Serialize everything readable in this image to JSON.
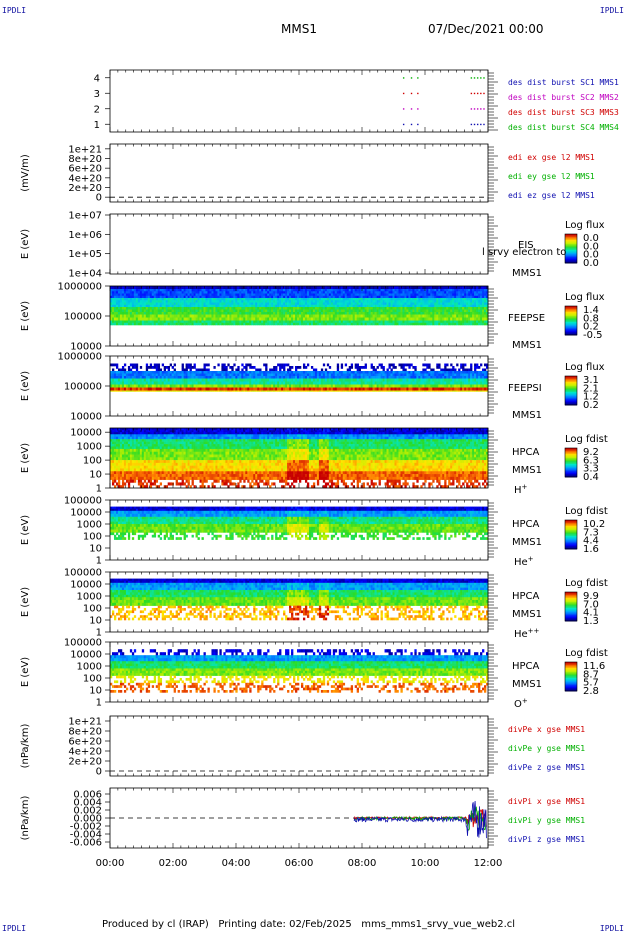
{
  "header": {
    "spacecraft": "MMS1",
    "datetime": "07/Dec/2021 00:00",
    "corner_label": "IPDLI"
  },
  "footer": {
    "produced_by": "Produced by cl (IRAP)",
    "printing_date": "Printing date: 02/Feb/2025",
    "filename": "mms_mms1_srvy_vue_web2.cl"
  },
  "x_axis": {
    "range_hours": [
      0,
      12
    ],
    "ticks": [
      "00:00",
      "02:00",
      "04:00",
      "06:00",
      "08:00",
      "10:00",
      "12:00"
    ]
  },
  "chart_data": [
    {
      "id": "burst",
      "type": "scatter",
      "ylim": [
        0.5,
        4.5
      ],
      "yticks": [
        "4",
        "3",
        "2",
        "1"
      ],
      "ytick_values": [
        4,
        3,
        2,
        1
      ],
      "ylabel": "",
      "series": [
        {
          "name": "des dist burst SC1 MMS1",
          "color": "#1010b0",
          "y": 1,
          "x_hours": [
            9.3,
            9.55,
            9.75,
            11.45,
            11.55,
            11.65,
            11.75,
            11.85
          ]
        },
        {
          "name": "des dist burst SC2 MMS2",
          "color": "#c000c0",
          "y": 2,
          "x_hours": [
            9.3,
            9.55,
            9.75,
            11.45,
            11.55,
            11.65,
            11.75,
            11.85
          ]
        },
        {
          "name": "des dist burst SC3 MMS3",
          "color": "#d00000",
          "y": 3,
          "x_hours": [
            9.3,
            9.55,
            9.75,
            11.45,
            11.55,
            11.65,
            11.75,
            11.85
          ]
        },
        {
          "name": "des dist burst SC4 MMS4",
          "color": "#00b000",
          "y": 4,
          "x_hours": [
            9.3,
            9.55,
            9.75,
            11.45,
            11.55,
            11.65,
            11.75,
            11.85
          ]
        }
      ]
    },
    {
      "id": "edi",
      "type": "line",
      "ylabel": "(mV/m)",
      "ylim": [
        -1e+20,
        1.1e+21
      ],
      "yticks": [
        "1e+21",
        "8e+20",
        "6e+20",
        "4e+20",
        "2e+20",
        "0"
      ],
      "ytick_values": [
        1e+21,
        8e+20,
        6e+20,
        4e+20,
        2e+20,
        0
      ],
      "zero_line": true,
      "series": [
        {
          "name": "edi ex gse l2 MMS1",
          "color": "#d00000"
        },
        {
          "name": "edi ey gse l2 MMS1",
          "color": "#00b000"
        },
        {
          "name": "edi ez gse l2 MMS1",
          "color": "#1010b0"
        }
      ]
    },
    {
      "id": "eis",
      "type": "heatmap",
      "ylabel": "E (eV)",
      "yticks": [
        "1e+07",
        "1e+06",
        "1e+05",
        "1e+04"
      ],
      "log_y": [
        4,
        7
      ],
      "instrument": [
        "EIS",
        "MMS1"
      ],
      "overlay_text": "l srvy electron to",
      "colorbar": {
        "title": "Log flux",
        "ticks": [
          "0.0",
          "0.0",
          "0.0",
          "0.0"
        ]
      },
      "rows": [],
      "note": "empty"
    },
    {
      "id": "feepse",
      "type": "heatmap",
      "ylabel": "E (eV)",
      "yticks": [
        "1000000",
        "100000",
        "10000"
      ],
      "log_y": [
        4,
        6
      ],
      "instrument": [
        "FEEPSE",
        "MMS1"
      ],
      "colorbar": {
        "title": "Log flux",
        "ticks": [
          "1.4",
          "0.8",
          "0.2",
          "-0.5"
        ]
      },
      "bands": [
        {
          "from": 5.9,
          "to": 6.0,
          "level": 0.05
        },
        {
          "from": 5.6,
          "to": 5.9,
          "level": 0.2
        },
        {
          "from": 5.3,
          "to": 5.6,
          "level": 0.4
        },
        {
          "from": 5.05,
          "to": 5.3,
          "level": 0.55
        },
        {
          "from": 4.85,
          "to": 5.05,
          "level": 0.62
        },
        {
          "from": 4.7,
          "to": 4.85,
          "level": 0.5
        }
      ]
    },
    {
      "id": "feepsi",
      "type": "heatmap",
      "ylabel": "E (eV)",
      "yticks": [
        "1000000",
        "100000",
        "10000"
      ],
      "log_y": [
        4,
        6
      ],
      "instrument": [
        "FEEPSI",
        "MMS1"
      ],
      "colorbar": {
        "title": "Log flux",
        "ticks": [
          "3.1",
          "2.1",
          "1.2",
          "0.2"
        ]
      },
      "bands": [
        {
          "from": 5.5,
          "to": 5.75,
          "level": 0.05,
          "sparse": true
        },
        {
          "from": 5.25,
          "to": 5.5,
          "level": 0.25
        },
        {
          "from": 5.05,
          "to": 5.25,
          "level": 0.45
        },
        {
          "from": 4.95,
          "to": 5.05,
          "level": 0.62
        },
        {
          "from": 4.85,
          "to": 4.95,
          "level": 0.95
        },
        {
          "from": 4.82,
          "to": 4.85,
          "level": 0.75
        }
      ]
    },
    {
      "id": "hpca_h",
      "type": "heatmap",
      "ylabel": "E (eV)",
      "yticks": [
        "10000",
        "1000",
        "100",
        "10",
        "1"
      ],
      "log_y": [
        0,
        4.3
      ],
      "instrument": [
        "HPCA",
        "MMS1"
      ],
      "species": "H",
      "species_sup": "+",
      "colorbar": {
        "title": "Log fdist",
        "ticks": [
          "9.2",
          "6.3",
          "3.3",
          "0.4"
        ]
      },
      "bands": [
        {
          "from": 3.85,
          "to": 4.3,
          "level": 0.08
        },
        {
          "from": 3.5,
          "to": 3.85,
          "level": 0.28
        },
        {
          "from": 2.8,
          "to": 3.5,
          "level": 0.5
        },
        {
          "from": 2.0,
          "to": 2.8,
          "level": 0.62
        },
        {
          "from": 1.2,
          "to": 2.0,
          "level": 0.78
        },
        {
          "from": 0.6,
          "to": 1.2,
          "level": 0.9
        },
        {
          "from": 0.0,
          "to": 0.6,
          "level": 0.95,
          "sparse": true
        }
      ]
    },
    {
      "id": "hpca_he",
      "type": "heatmap",
      "ylabel": "E (eV)",
      "yticks": [
        "100000",
        "10000",
        "1000",
        "100",
        "10",
        "1"
      ],
      "log_y": [
        0,
        5
      ],
      "instrument": [
        "HPCA",
        "MMS1"
      ],
      "species": "He",
      "species_sup": "+",
      "colorbar": {
        "title": "Log fdist",
        "ticks": [
          "10.2",
          "7.3",
          "4.4",
          "1.6"
        ]
      },
      "bands": [
        {
          "from": 4.1,
          "to": 4.45,
          "level": 0.08
        },
        {
          "from": 3.6,
          "to": 4.1,
          "level": 0.3
        },
        {
          "from": 3.0,
          "to": 3.6,
          "level": 0.48
        },
        {
          "from": 2.3,
          "to": 3.0,
          "level": 0.6
        },
        {
          "from": 1.7,
          "to": 2.3,
          "level": 0.55,
          "sparse": true
        }
      ]
    },
    {
      "id": "hpca_hepp",
      "type": "heatmap",
      "ylabel": "E (eV)",
      "yticks": [
        "100000",
        "10000",
        "1000",
        "100",
        "10",
        "1"
      ],
      "log_y": [
        0,
        5
      ],
      "instrument": [
        "HPCA",
        "MMS1"
      ],
      "species": "He",
      "species_sup": "++",
      "colorbar": {
        "title": "Log fdist",
        "ticks": [
          "9.9",
          "7.0",
          "4.1",
          "1.3"
        ]
      },
      "bands": [
        {
          "from": 4.1,
          "to": 4.45,
          "level": 0.08
        },
        {
          "from": 3.5,
          "to": 4.1,
          "level": 0.3
        },
        {
          "from": 2.9,
          "to": 3.5,
          "level": 0.5
        },
        {
          "from": 2.2,
          "to": 2.9,
          "level": 0.6
        },
        {
          "from": 1.0,
          "to": 2.2,
          "level": 0.82,
          "sparse": true
        }
      ]
    },
    {
      "id": "hpca_o",
      "type": "heatmap",
      "ylabel": "E (eV)",
      "yticks": [
        "100000",
        "10000",
        "1000",
        "100",
        "10",
        "1"
      ],
      "log_y": [
        0,
        5
      ],
      "instrument": [
        "HPCA",
        "MMS1"
      ],
      "species": "O",
      "species_sup": "+",
      "colorbar": {
        "title": "Log fdist",
        "ticks": [
          "11.6",
          "8.7",
          "5.7",
          "2.8"
        ]
      },
      "bands": [
        {
          "from": 3.9,
          "to": 4.4,
          "level": 0.08,
          "sparse": true
        },
        {
          "from": 3.4,
          "to": 3.9,
          "level": 0.3
        },
        {
          "from": 2.8,
          "to": 3.4,
          "level": 0.5
        },
        {
          "from": 2.2,
          "to": 2.8,
          "level": 0.62
        },
        {
          "from": 1.6,
          "to": 2.2,
          "level": 0.75,
          "sparse": true
        },
        {
          "from": 0.8,
          "to": 1.6,
          "level": 0.9,
          "sparse": true
        }
      ]
    },
    {
      "id": "divpe",
      "type": "line",
      "ylabel": "(nPa/km)",
      "ylim": [
        -1e+20,
        1.1e+21
      ],
      "yticks": [
        "1e+21",
        "8e+20",
        "6e+20",
        "4e+20",
        "2e+20",
        "0"
      ],
      "ytick_values": [
        1e+21,
        8e+20,
        6e+20,
        4e+20,
        2e+20,
        0
      ],
      "zero_line": true,
      "series": [
        {
          "name": "divPe x gse MMS1",
          "color": "#d00000"
        },
        {
          "name": "divPe y gse MMS1",
          "color": "#00b000"
        },
        {
          "name": "divPe z gse MMS1",
          "color": "#1010b0"
        }
      ]
    },
    {
      "id": "divpi",
      "type": "line",
      "ylabel": "(nPa/km)",
      "ylim": [
        -0.0075,
        0.0075
      ],
      "yticks": [
        "0.006",
        "0.004",
        "0.002",
        "0.000",
        "-0.002",
        "-0.004",
        "-0.006"
      ],
      "ytick_values": [
        0.006,
        0.004,
        0.002,
        0,
        -0.002,
        -0.004,
        -0.006
      ],
      "zero_line": true,
      "data_start_hours": 7.75,
      "series": [
        {
          "name": "divPi x gse MMS1",
          "color": "#d00000",
          "amp": 0.0003
        },
        {
          "name": "divPi y gse MMS1",
          "color": "#00b000",
          "amp": 0.0004
        },
        {
          "name": "divPi z gse MMS1",
          "color": "#1010b0",
          "amp": 0.0006
        }
      ]
    }
  ]
}
